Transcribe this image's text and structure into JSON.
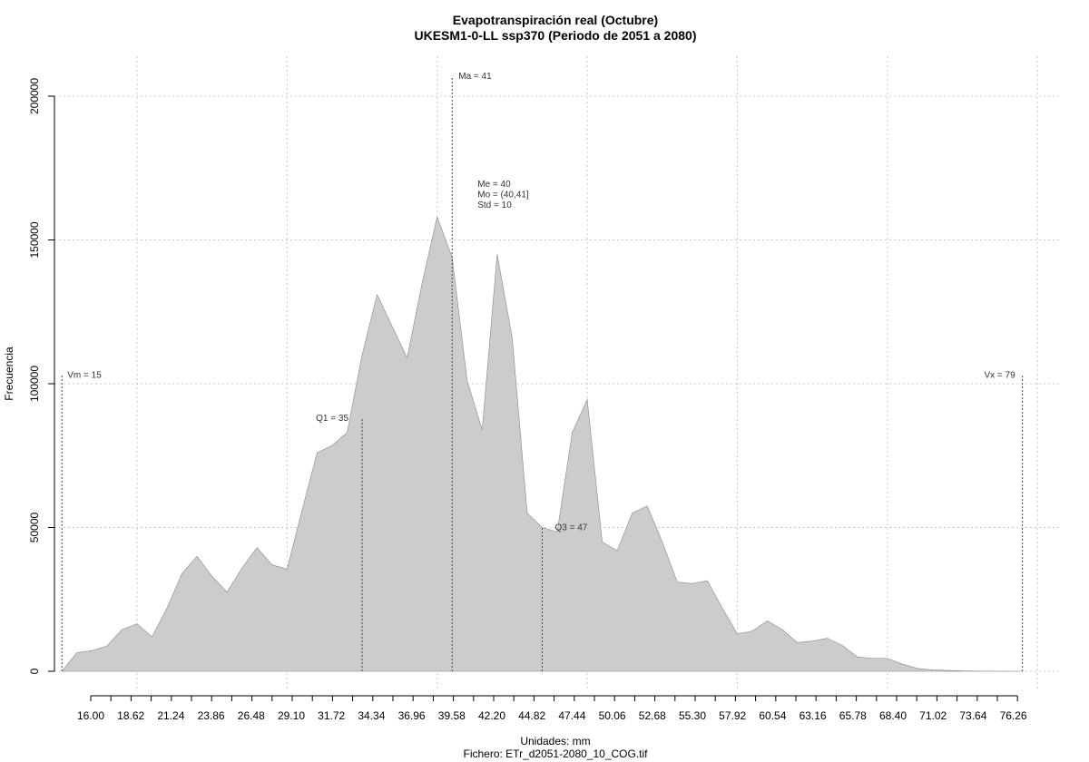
{
  "chart_data": {
    "type": "area",
    "title": "Evapotranspiración real (Octubre)",
    "subtitle": "UKESM1-0-LL ssp370 (Periodo de 2051 a 2080)",
    "xlabel": "Unidades: mm",
    "ylabel": "Frecuencia",
    "caption": "Fichero: ETr_d2051-2080_10_COG.tif",
    "fill_color": "#cccccc",
    "grid": true,
    "xlim": [
      14.5,
      81.5
    ],
    "ylim": [
      0,
      210000
    ],
    "x": [
      15,
      16,
      17,
      18,
      19,
      20,
      21,
      22,
      23,
      24,
      25,
      26,
      27,
      28,
      29,
      30,
      31,
      32,
      33,
      34,
      35,
      36,
      37,
      38,
      39,
      40,
      41,
      42,
      43,
      44,
      45,
      46,
      47,
      48,
      49,
      50,
      51,
      52,
      53,
      54,
      55,
      56,
      57,
      58,
      59,
      60,
      61,
      62,
      63,
      64,
      65,
      66,
      67,
      68,
      69,
      70,
      71,
      72,
      73,
      74,
      75,
      76,
      77,
      78,
      79
    ],
    "y": [
      0,
      6500,
      7200,
      8800,
      14500,
      16500,
      12000,
      22000,
      34000,
      40000,
      33000,
      27500,
      36000,
      43000,
      37000,
      35500,
      56000,
      76000,
      78500,
      83000,
      110000,
      131000,
      120000,
      109000,
      135000,
      158000,
      144000,
      101000,
      84000,
      145000,
      116000,
      55000,
      50000,
      48500,
      83000,
      94500,
      45000,
      42000,
      55000,
      57500,
      45000,
      31000,
      30500,
      31500,
      22000,
      13000,
      14000,
      17500,
      14500,
      10000,
      10500,
      11500,
      9000,
      5000,
      4500,
      4500,
      2500,
      1000,
      500,
      300,
      150,
      50,
      30,
      20,
      0
    ],
    "yticks": [
      0,
      50000,
      100000,
      150000,
      200000
    ],
    "ytick_labels": [
      "0",
      "50000",
      "100000",
      "150000",
      "200000"
    ],
    "xtick_labels": [
      "16.00",
      "18.62",
      "21.24",
      "23.86",
      "26.48",
      "29.10",
      "31.72",
      "34.34",
      "36.96",
      "39.58",
      "42.20",
      "44.82",
      "47.44",
      "50.06",
      "52.68",
      "55.30",
      "57.92",
      "60.54",
      "63.16",
      "65.78",
      "68.40",
      "71.02",
      "73.64",
      "76.26"
    ],
    "xtick_start": 16.0,
    "xtick_step": 2.62,
    "xgrid": [
      20,
      30,
      40,
      50,
      60,
      70,
      80
    ],
    "annotations": {
      "vm": {
        "label": "Vm = 15",
        "x": 15,
        "y_top": 103000
      },
      "vx": {
        "label": "Vx = 79",
        "x": 79,
        "y_top": 103000
      },
      "q1": {
        "label": "Q1 = 35",
        "x": 35,
        "y_top": 88000
      },
      "q3": {
        "label": "Q3 = 47",
        "x": 47,
        "y_top": 50000
      },
      "ma": {
        "label": "Ma = 41",
        "x": 41,
        "y_top": 207000
      },
      "stats": [
        "Me = 40",
        "Mo = (40,41]",
        "Std = 10"
      ]
    }
  }
}
